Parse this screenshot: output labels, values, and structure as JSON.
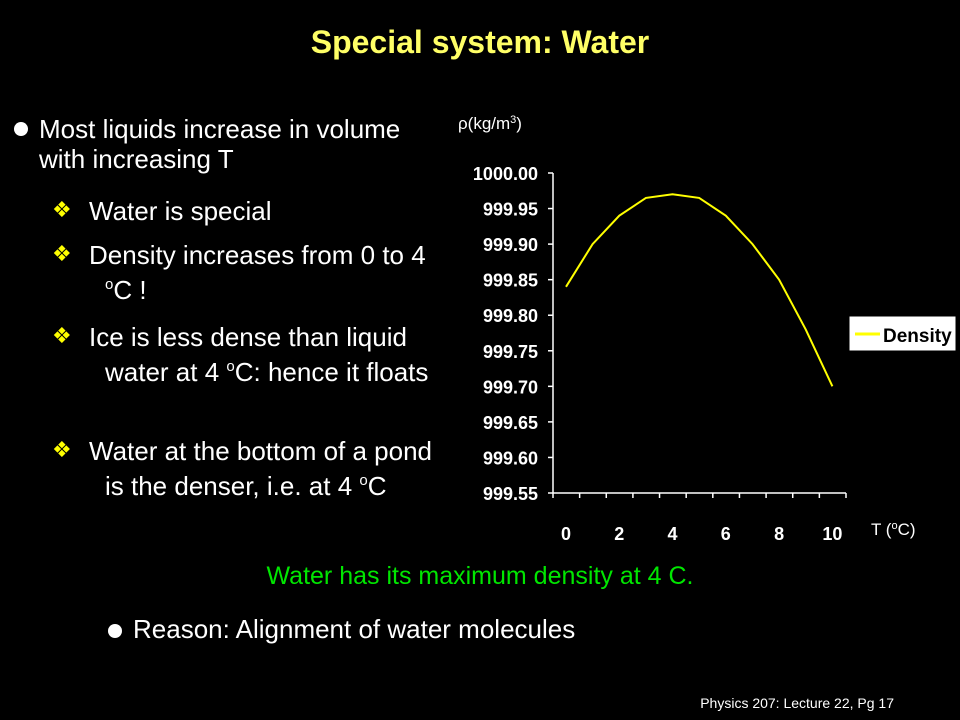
{
  "slide": {
    "title": "Special system: Water",
    "bullet1": "Most liquids increase in volume with increasing T",
    "sub1": "Water is special",
    "sub2_pre": "Density increases from 0 to 4 ",
    "sub2_sup": "o",
    "sub2_post": "C !",
    "sub3_pre": "Ice is less dense than liquid water at 4 ",
    "sub3_sup": "o",
    "sub3_post": "C: hence it floats",
    "sub4_pre": "Water at the bottom of a pond is the denser, i.e. at 4 ",
    "sub4_sup": "o",
    "sub4_post": "C",
    "conclusion": "Water has its maximum density at 4 C.",
    "reason": "Reason: Alignment of water molecules",
    "footer": "Physics 207: Lecture 22, Pg 17",
    "colors": {
      "title": "#ffff66",
      "conclusion": "#00e600",
      "line": "#ffff00",
      "diamond": "#ffff00"
    }
  },
  "chart_data": {
    "type": "line",
    "ylabel_pre": "ρ(kg/m",
    "ylabel_sup": "3",
    "ylabel_post": ")",
    "xlabel_pre": "T (",
    "xlabel_sup": "o",
    "xlabel_post": "C)",
    "x": [
      0,
      1,
      2,
      3,
      4,
      5,
      6,
      7,
      8,
      9,
      10
    ],
    "series": [
      {
        "name": "Density",
        "values": [
          999.84,
          999.9,
          999.94,
          999.965,
          999.97,
          999.965,
          999.94,
          999.9,
          999.85,
          999.78,
          999.7
        ]
      }
    ],
    "ylim": [
      999.55,
      1000.0
    ],
    "yticks": [
      "999.55",
      "999.60",
      "999.65",
      "999.70",
      "999.75",
      "999.80",
      "999.85",
      "999.90",
      "999.95",
      "1000.00"
    ],
    "xticks": [
      "0",
      "2",
      "4",
      "6",
      "8",
      "10"
    ],
    "xlim": [
      0,
      11
    ],
    "legend": "right",
    "grid": false
  }
}
